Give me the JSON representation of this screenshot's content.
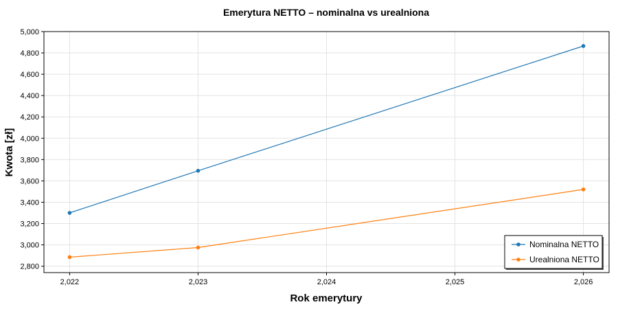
{
  "chart_data": {
    "type": "line",
    "title": "Emerytura NETTO – nominalna vs urealniona",
    "xlabel": "Rok emerytury",
    "ylabel": "Kwota [zł]",
    "x": [
      2022,
      2023,
      2026
    ],
    "xlim": [
      2021.8,
      2026.2
    ],
    "ylim": [
      2740,
      5000
    ],
    "x_ticks": [
      2022,
      2023,
      2024,
      2025,
      2026
    ],
    "x_tick_labels": [
      "2,022",
      "2,023",
      "2,024",
      "2,025",
      "2,026"
    ],
    "y_ticks": [
      2800,
      3000,
      3200,
      3400,
      3600,
      3800,
      4000,
      4200,
      4400,
      4600,
      4800,
      5000
    ],
    "y_tick_labels": [
      "2,800",
      "3,000",
      "3,200",
      "3,400",
      "3,600",
      "3,800",
      "4,000",
      "4,200",
      "4,400",
      "4,600",
      "4,800",
      "5,000"
    ],
    "grid": true,
    "legend_position": "bottom-right",
    "series": [
      {
        "name": "Nominalna NETTO",
        "color": "#1f77b4",
        "values": [
          3300,
          3695,
          4865
        ]
      },
      {
        "name": "Urealniona NETTO",
        "color": "#ff7f0e",
        "values": [
          2885,
          2975,
          3520
        ]
      }
    ]
  }
}
